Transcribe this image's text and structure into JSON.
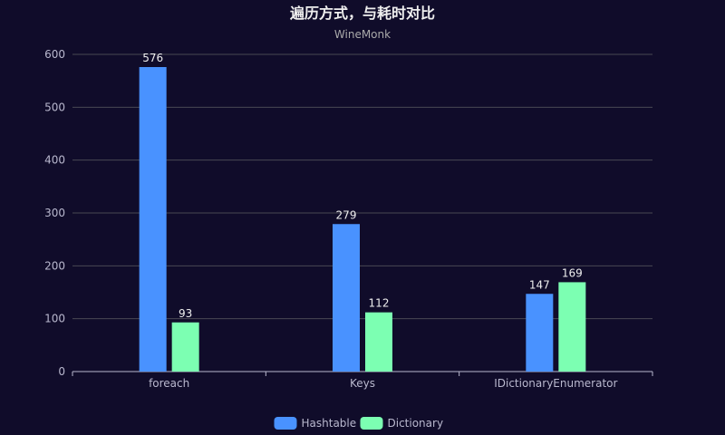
{
  "chart_data": {
    "type": "bar",
    "title": "遍历方式，与耗时对比",
    "subtitle": "WineMonk",
    "categories": [
      "foreach",
      "Keys",
      "IDictionaryEnumerator"
    ],
    "series": [
      {
        "name": "Hashtable",
        "values": [
          576,
          279,
          147
        ],
        "color": "#4992ff"
      },
      {
        "name": "Dictionary",
        "values": [
          93,
          112,
          169
        ],
        "color": "#7cffb2"
      }
    ],
    "ylim": [
      0,
      600
    ],
    "yticks": [
      0,
      100,
      200,
      300,
      400,
      500,
      600
    ],
    "grid": true,
    "legend_position": "bottom"
  }
}
